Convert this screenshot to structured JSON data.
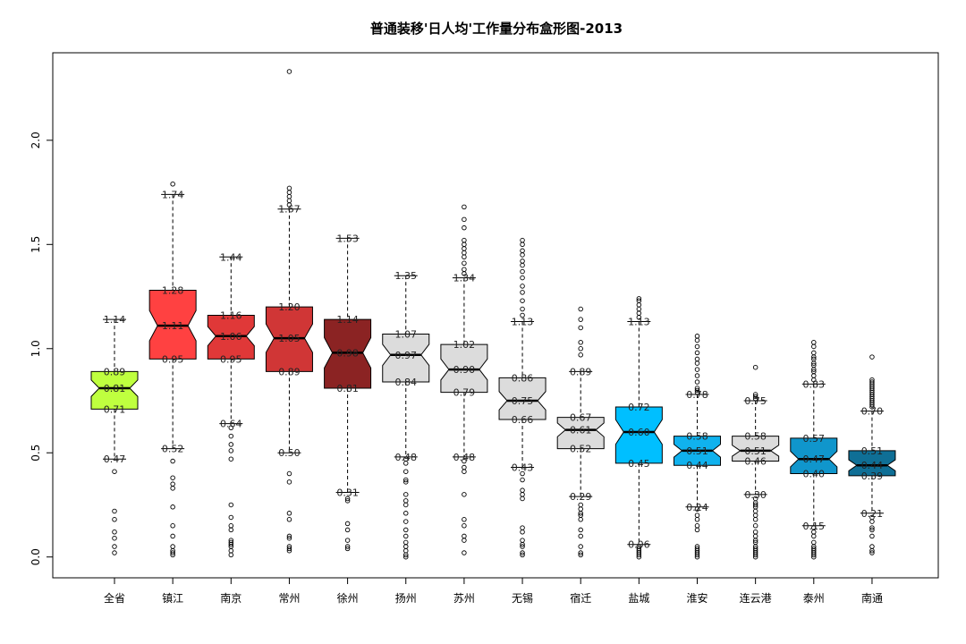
{
  "chart_data": {
    "type": "boxplot",
    "title": "普通装移'日人均'工作量分布盒形图-2013",
    "xlabel": "",
    "ylabel": "",
    "ylim": [
      -0.1,
      2.42
    ],
    "y_ticks": [
      "0.0",
      "0.5",
      "1.0",
      "1.5",
      "2.0"
    ],
    "notched": true,
    "grid": false,
    "legend": "none",
    "categories": [
      "全省",
      "镇江",
      "南京",
      "常州",
      "徐州",
      "扬州",
      "苏州",
      "无锡",
      "宿迁",
      "盐城",
      "淮安",
      "连云港",
      "泰州",
      "南通"
    ],
    "colors": [
      "#bfff3f",
      "#ff4141",
      "#e03838",
      "#d03636",
      "#8b2323",
      "#dcdcdc",
      "#dcdcdc",
      "#dcdcdc",
      "#dcdcdc",
      "#00bfff",
      "#10b2ee",
      "#dcdcdc",
      "#1096cc",
      "#0f6f96"
    ],
    "boxes": [
      {
        "wlo": 0.47,
        "q1": 0.71,
        "med": 0.81,
        "q3": 0.89,
        "whi": 1.14,
        "labels": [
          "1.14",
          "0.89",
          "0.81",
          "0.71",
          "0.47"
        ],
        "outliers": [
          0.41,
          0.22,
          0.18,
          0.12,
          0.09,
          0.05,
          0.02
        ]
      },
      {
        "wlo": 0.52,
        "q1": 0.95,
        "med": 1.11,
        "q3": 1.28,
        "whi": 1.74,
        "labels": [
          "1.74",
          "1.28",
          "1.11",
          "0.95",
          "0.52"
        ],
        "outliers": [
          1.79,
          0.46,
          0.38,
          0.35,
          0.33,
          0.24,
          0.15,
          0.1,
          0.05,
          0.03,
          0.02,
          0.01
        ]
      },
      {
        "wlo": 0.64,
        "q1": 0.95,
        "med": 1.06,
        "q3": 1.16,
        "whi": 1.44,
        "labels": [
          "1.44",
          "1.16",
          "1.06",
          "0.95",
          "0.64"
        ],
        "outliers": [
          0.62,
          0.58,
          0.54,
          0.51,
          0.47,
          0.25,
          0.19,
          0.15,
          0.13,
          0.08,
          0.07,
          0.06,
          0.05,
          0.03,
          0.01
        ]
      },
      {
        "wlo": 0.5,
        "q1": 0.89,
        "med": 1.05,
        "q3": 1.2,
        "whi": 1.67,
        "labels": [
          "1.67",
          "1.20",
          "1.05",
          "0.89",
          "0.50"
        ],
        "outliers": [
          2.33,
          1.77,
          1.75,
          1.73,
          1.71,
          1.69,
          0.4,
          0.36,
          0.21,
          0.18,
          0.1,
          0.09,
          0.05,
          0.04,
          0.03
        ]
      },
      {
        "wlo": 0.31,
        "q1": 0.81,
        "med": 0.98,
        "q3": 1.14,
        "whi": 1.53,
        "labels": [
          "1.53",
          "1.14",
          "0.98",
          "0.81",
          "0.31"
        ],
        "outliers": [
          0.28,
          0.27,
          0.16,
          0.13,
          0.08,
          0.05,
          0.04
        ]
      },
      {
        "wlo": 0.48,
        "q1": 0.84,
        "med": 0.97,
        "q3": 1.07,
        "whi": 1.35,
        "labels": [
          "1.35",
          "1.07",
          "0.97",
          "0.84",
          "0.48"
        ],
        "outliers": [
          0.47,
          0.45,
          0.41,
          0.37,
          0.36,
          0.3,
          0.27,
          0.25,
          0.21,
          0.17,
          0.13,
          0.1,
          0.07,
          0.05,
          0.03,
          0.01,
          0.0
        ]
      },
      {
        "wlo": 0.48,
        "q1": 0.79,
        "med": 0.9,
        "q3": 1.02,
        "whi": 1.34,
        "labels": [
          "1.34",
          "1.02",
          "0.90",
          "0.79",
          "0.48"
        ],
        "outliers": [
          1.68,
          1.62,
          1.58,
          1.52,
          1.5,
          1.48,
          1.46,
          1.44,
          1.41,
          1.38,
          1.36,
          0.46,
          0.43,
          0.41,
          0.3,
          0.18,
          0.15,
          0.1,
          0.08,
          0.02
        ]
      },
      {
        "wlo": 0.43,
        "q1": 0.66,
        "med": 0.75,
        "q3": 0.86,
        "whi": 1.13,
        "labels": [
          "1.13",
          "0.86",
          "0.75",
          "0.66",
          "0.43"
        ],
        "outliers": [
          1.52,
          1.5,
          1.47,
          1.45,
          1.42,
          1.4,
          1.37,
          1.34,
          1.3,
          1.27,
          1.23,
          1.19,
          1.16,
          0.4,
          0.37,
          0.32,
          0.3,
          0.28,
          0.14,
          0.12,
          0.08,
          0.06,
          0.05,
          0.02,
          0.01
        ]
      },
      {
        "wlo": 0.29,
        "q1": 0.52,
        "med": 0.61,
        "q3": 0.67,
        "whi": 0.89,
        "labels": [
          "0.89",
          "0.67",
          "0.61",
          "0.52",
          "0.29"
        ],
        "outliers": [
          1.19,
          1.14,
          1.1,
          1.03,
          1.0,
          0.97,
          0.25,
          0.23,
          0.21,
          0.2,
          0.18,
          0.13,
          0.1,
          0.05,
          0.02,
          0.01
        ]
      },
      {
        "wlo": 0.06,
        "q1": 0.45,
        "med": 0.6,
        "q3": 0.72,
        "whi": 1.13,
        "labels": [
          "1.13",
          "0.72",
          "0.60",
          "0.45",
          "0.06"
        ],
        "outliers": [
          1.24,
          1.23,
          1.21,
          1.19,
          1.17,
          1.15,
          0.05,
          0.04,
          0.03,
          0.02,
          0.01,
          0.0
        ]
      },
      {
        "wlo": 0.24,
        "q1": 0.44,
        "med": 0.51,
        "q3": 0.58,
        "whi": 0.78,
        "labels": [
          "0.78",
          "0.58",
          "0.51",
          "0.44",
          "0.24"
        ],
        "outliers": [
          1.06,
          1.04,
          1.01,
          0.98,
          0.95,
          0.93,
          0.9,
          0.87,
          0.84,
          0.81,
          0.8,
          0.79,
          0.23,
          0.2,
          0.18,
          0.15,
          0.13,
          0.05,
          0.04,
          0.03,
          0.02,
          0.01,
          0.0
        ]
      },
      {
        "wlo": 0.3,
        "q1": 0.46,
        "med": 0.51,
        "q3": 0.58,
        "whi": 0.75,
        "labels": [
          "0.75",
          "0.58",
          "0.51",
          "0.46",
          "0.30"
        ],
        "outliers": [
          0.91,
          0.78,
          0.77,
          0.76,
          0.28,
          0.26,
          0.25,
          0.24,
          0.22,
          0.2,
          0.18,
          0.15,
          0.12,
          0.1,
          0.08,
          0.07,
          0.05,
          0.04,
          0.03,
          0.02,
          0.01,
          0.0
        ]
      },
      {
        "wlo": 0.15,
        "q1": 0.4,
        "med": 0.47,
        "q3": 0.57,
        "whi": 0.83,
        "labels": [
          "0.83",
          "0.57",
          "0.47",
          "0.40",
          "0.15"
        ],
        "outliers": [
          1.03,
          1.01,
          0.98,
          0.96,
          0.95,
          0.93,
          0.92,
          0.9,
          0.89,
          0.87,
          0.85,
          0.14,
          0.12,
          0.1,
          0.07,
          0.05,
          0.04,
          0.03,
          0.02,
          0.01,
          0.0
        ]
      },
      {
        "wlo": 0.21,
        "q1": 0.39,
        "med": 0.44,
        "q3": 0.51,
        "whi": 0.7,
        "labels": [
          "0.70",
          "0.51",
          "0.44",
          "0.39",
          "0.21"
        ],
        "outliers": [
          0.96,
          0.85,
          0.84,
          0.83,
          0.82,
          0.81,
          0.8,
          0.79,
          0.78,
          0.77,
          0.76,
          0.75,
          0.74,
          0.73,
          0.72,
          0.19,
          0.17,
          0.14,
          0.13,
          0.1,
          0.05,
          0.03,
          0.02
        ]
      }
    ]
  }
}
